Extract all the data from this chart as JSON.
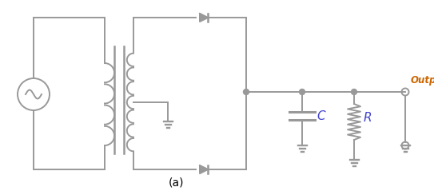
{
  "color": "#999999",
  "bg_color": "#ffffff",
  "title": "(a)",
  "output_label": "Output",
  "C_label": "C",
  "R_label": "R",
  "output_color": "#cc6600",
  "label_color": "#4444cc",
  "figsize": [
    5.43,
    2.39
  ],
  "dpi": 100
}
